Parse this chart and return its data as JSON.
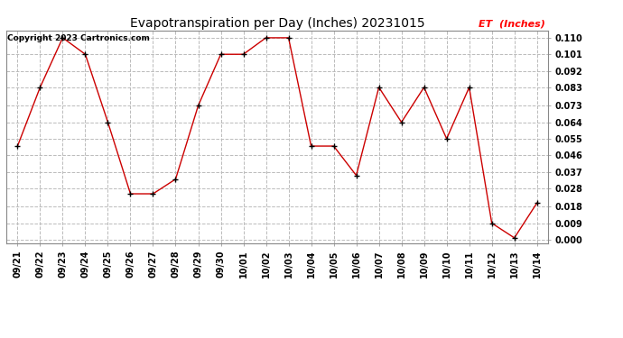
{
  "title": "Evapotranspiration per Day (Inches) 20231015",
  "legend_label": "ET  (Inches)",
  "copyright": "Copyright 2023 Cartronics.com",
  "dates": [
    "09/21",
    "09/22",
    "09/23",
    "09/24",
    "09/25",
    "09/26",
    "09/27",
    "09/28",
    "09/29",
    "09/30",
    "10/01",
    "10/02",
    "10/03",
    "10/04",
    "10/05",
    "10/06",
    "10/07",
    "10/08",
    "10/09",
    "10/10",
    "10/11",
    "10/12",
    "10/13",
    "10/14"
  ],
  "values": [
    0.051,
    0.083,
    0.11,
    0.101,
    0.064,
    0.025,
    0.025,
    0.033,
    0.073,
    0.101,
    0.101,
    0.11,
    0.11,
    0.051,
    0.051,
    0.035,
    0.083,
    0.064,
    0.083,
    0.055,
    0.083,
    0.009,
    0.001,
    0.02
  ],
  "ylim": [
    -0.002,
    0.114
  ],
  "yticks": [
    0.0,
    0.009,
    0.018,
    0.028,
    0.037,
    0.046,
    0.055,
    0.064,
    0.073,
    0.083,
    0.092,
    0.101,
    0.11
  ],
  "line_color": "#cc0000",
  "marker": "+",
  "marker_color": "black",
  "background_color": "#ffffff",
  "grid_color": "#bbbbbb",
  "title_fontsize": 10,
  "tick_fontsize": 7,
  "legend_color": "red",
  "copyright_color": "black",
  "copyright_fontsize": 6.5,
  "legend_fontsize": 8
}
